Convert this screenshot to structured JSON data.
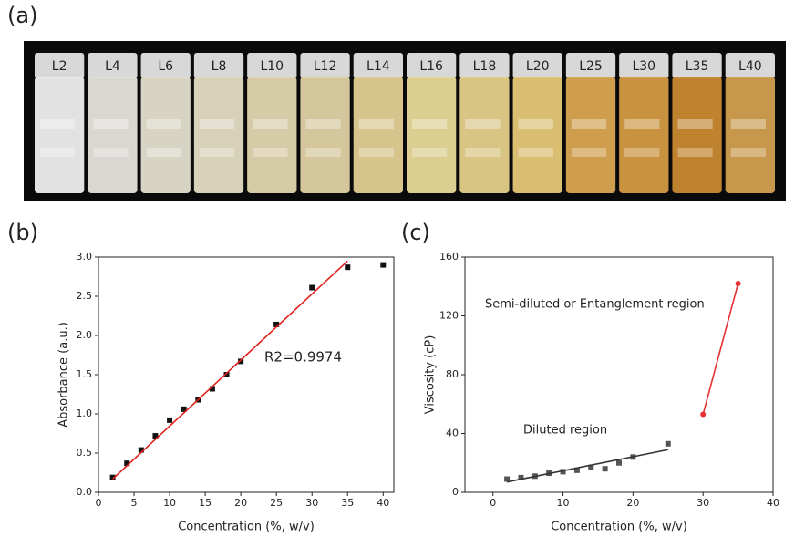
{
  "photo": {
    "panel_label": "(a)",
    "vials": [
      {
        "label": "L2",
        "color": "#eeeeee"
      },
      {
        "label": "L4",
        "color": "#e6e3dc"
      },
      {
        "label": "L6",
        "color": "#e4dfcf"
      },
      {
        "label": "L8",
        "color": "#e3dcc4"
      },
      {
        "label": "L10",
        "color": "#e2d6b0"
      },
      {
        "label": "L12",
        "color": "#e0d2a4"
      },
      {
        "label": "L14",
        "color": "#e2cf94"
      },
      {
        "label": "L16",
        "color": "#e8d898"
      },
      {
        "label": "L18",
        "color": "#e4cf8a"
      },
      {
        "label": "L20",
        "color": "#e5c878"
      },
      {
        "label": "L25",
        "color": "#d9a652"
      },
      {
        "label": "L30",
        "color": "#d49a44"
      },
      {
        "label": "L35",
        "color": "#c98a32"
      },
      {
        "label": "L40",
        "color": "#d2a050"
      }
    ]
  },
  "chart_data": [
    {
      "type": "scatter",
      "panel_label": "(b)",
      "x_label": "Concentration (%, w/v)",
      "y_label": "Absorbance (a.u.)",
      "annotations": [
        "R2=0.9974"
      ],
      "xlim": [
        0,
        41.5
      ],
      "ylim": [
        0,
        3
      ],
      "xticks": [
        0,
        5,
        10,
        15,
        20,
        25,
        30,
        35,
        40
      ],
      "yticks": [
        {
          "value": 0,
          "label": "0.0"
        },
        {
          "value": 0.5,
          "label": "0.5"
        },
        {
          "value": 1,
          "label": "1.0"
        },
        {
          "value": 1.5,
          "label": "1.5"
        },
        {
          "value": 2,
          "label": "2.0"
        },
        {
          "value": 2.5,
          "label": "2.5"
        },
        {
          "value": 3,
          "label": "3.0"
        }
      ],
      "series": [
        {
          "mode": "markers",
          "color": "#111111",
          "x": [
            2,
            4,
            6,
            8,
            10,
            12,
            14,
            16,
            18,
            20,
            25,
            30,
            35,
            40
          ],
          "values": [
            0.19,
            0.37,
            0.54,
            0.72,
            0.92,
            1.06,
            1.18,
            1.32,
            1.5,
            1.67,
            2.14,
            2.61,
            2.87,
            2.9
          ]
        },
        {
          "mode": "line",
          "color": "#e0201c",
          "x": [
            2,
            35
          ],
          "values": [
            0.17,
            2.95
          ]
        }
      ]
    },
    {
      "type": "scatter",
      "panel_label": "(c)",
      "x_label": "Concentration (%, w/v)",
      "y_label": "Viscosity (cP)",
      "annotations": [
        "Semi-diluted or Entanglement region",
        "Diluted region"
      ],
      "xlim": [
        -4,
        40
      ],
      "ylim": [
        0,
        160
      ],
      "xticks": [
        0,
        10,
        20,
        30,
        40
      ],
      "yticks": [
        0,
        40,
        80,
        120,
        160
      ],
      "series": [
        {
          "mode": "markers",
          "color": "#555555",
          "x": [
            2,
            4,
            6,
            8,
            10,
            12,
            14,
            16,
            18,
            20,
            25
          ],
          "values": [
            9,
            10,
            11,
            13,
            14,
            15,
            17,
            16,
            20,
            24,
            33
          ]
        },
        {
          "mode": "line",
          "color": "#333333",
          "x": [
            2,
            25
          ],
          "values": [
            7,
            29
          ]
        },
        {
          "mode": "lines+markers",
          "color": "#e83030",
          "x": [
            30,
            35
          ],
          "values": [
            53,
            142
          ]
        }
      ]
    }
  ]
}
